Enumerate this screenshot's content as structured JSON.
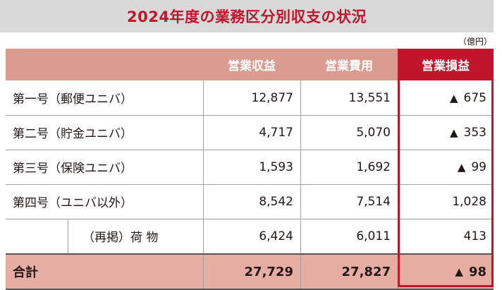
{
  "title": "2024年度の業務区分別収支の状況",
  "unit": "（億円）",
  "headers": [
    "",
    "営業収益",
    "営業費用",
    "営業損益"
  ],
  "rows": [
    {
      "label": "第一号（郵便ユニバ）",
      "revenue": "12,877",
      "expense": "13,551",
      "loss_mark": "▲",
      "profit": "675"
    },
    {
      "label": "第二号（貯金ユニバ）",
      "revenue": "4,717",
      "expense": "5,070",
      "loss_mark": "▲",
      "profit": "353"
    },
    {
      "label": "第三号（保険ユニバ）",
      "revenue": "1,593",
      "expense": "1,692",
      "loss_mark": "▲",
      "profit": "99"
    },
    {
      "label": "第四号（ユニバ以外）",
      "revenue": "8,542",
      "expense": "7,514",
      "loss_mark": "",
      "profit": "1,028"
    }
  ],
  "sub_row": {
    "label": "（再掲）荷 物",
    "revenue": "6,424",
    "expense": "6,011",
    "profit": "413"
  },
  "total": {
    "label": "合計",
    "revenue": "27,729",
    "expense": "27,827",
    "loss_mark": "▲",
    "profit": "98"
  },
  "colors": {
    "title_red": "#c0152a",
    "header_bg": "#dc9b8f",
    "total_bg": "#e6aea3",
    "title_bg": "#d9d9d9"
  }
}
